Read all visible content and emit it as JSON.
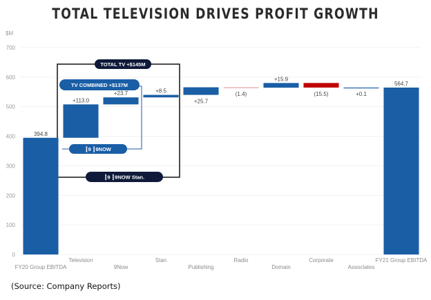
{
  "chart_data": {
    "type": "waterfall",
    "title": "TOTAL TELEVISION DRIVES PROFIT GROWTH",
    "ylabel": "$M",
    "ylim": [
      0,
      700
    ],
    "yticks": [
      0,
      100,
      200,
      300,
      400,
      500,
      600,
      700
    ],
    "grid": true,
    "categories": [
      "FY20 Group EBITDA",
      "Television",
      "9Now",
      "Stan",
      "Publishing",
      "Radio",
      "Domain",
      "Corporate",
      "Associates",
      "FY21 Group EBITDA"
    ],
    "values": [
      394.8,
      113.0,
      23.7,
      8.5,
      25.7,
      -1.4,
      15.9,
      -15.5,
      0.1,
      564.7
    ],
    "kinds": [
      "total",
      "delta",
      "delta",
      "delta",
      "delta",
      "delta",
      "delta",
      "delta",
      "delta",
      "total"
    ],
    "labels": [
      "394.8",
      "+113.0",
      "+23.7",
      "+8.5",
      "+25.7",
      "(1.4)",
      "+15.9",
      "(15.5)",
      "+0.1",
      "564.7"
    ],
    "colors": {
      "positive": "#1a5ea6",
      "negative": "#c00000",
      "negative_small": "#e8a0a0",
      "total": "#1a5ea6"
    },
    "annotations": {
      "total_tv": {
        "label": "TOTAL TV  +$145M",
        "brands": [
          "9",
          "9NOW",
          "Stan."
        ]
      },
      "tv_combined": {
        "label": "TV COMBINED  +$137M",
        "brands": [
          "9",
          "9NOW"
        ]
      }
    }
  },
  "source": "(Source: Company Reports)"
}
